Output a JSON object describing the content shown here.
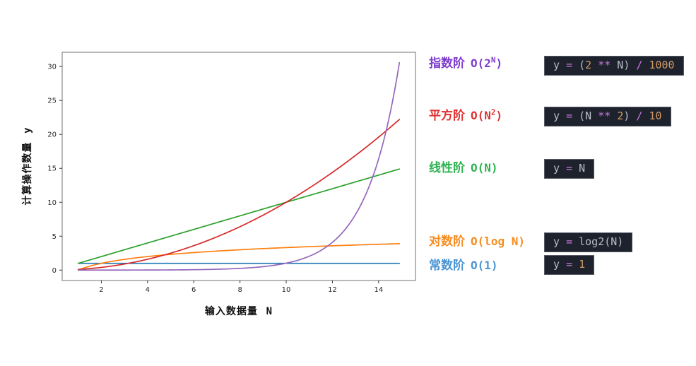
{
  "figure": {
    "background": "#ffffff",
    "xlabel": {
      "text": "输入数据量",
      "symbol": "N"
    },
    "ylabel": {
      "text": "计算操作数量",
      "symbol": "y"
    }
  },
  "chart_data": {
    "type": "line",
    "title": "",
    "xlabel": "输入数据量 N",
    "ylabel": "计算操作数量 y",
    "xlim": [
      0.305,
      15.595
    ],
    "ylim": [
      -1.53,
      32.1
    ],
    "x_ticks": [
      2,
      4,
      6,
      8,
      10,
      12,
      14
    ],
    "y_ticks": [
      0,
      5,
      10,
      15,
      20,
      25,
      30
    ],
    "grid": false,
    "x_sample_start": 1,
    "x_sample_end": 14.9,
    "x_sample_step": 0.1,
    "x": [
      1,
      2,
      3,
      4,
      5,
      6,
      7,
      8,
      9,
      10,
      11,
      12,
      13,
      14,
      14.9
    ],
    "series": [
      {
        "id": "constant",
        "name": "常数阶 O(1)",
        "formula": "y = 1",
        "color": "#1f77b4",
        "y": [
          1,
          1,
          1,
          1,
          1,
          1,
          1,
          1,
          1,
          1,
          1,
          1,
          1,
          1,
          1
        ]
      },
      {
        "id": "logarithmic",
        "name": "对数阶 O(log N)",
        "formula": "y = log2(N)",
        "color": "#ff7f0e",
        "y": [
          0,
          1,
          1.58,
          2,
          2.32,
          2.58,
          2.81,
          3,
          3.17,
          3.32,
          3.46,
          3.58,
          3.7,
          3.81,
          3.9
        ]
      },
      {
        "id": "linear",
        "name": "线性阶 O(N)",
        "formula": "y = N",
        "color": "#2ca02c",
        "y": [
          1,
          2,
          3,
          4,
          5,
          6,
          7,
          8,
          9,
          10,
          11,
          12,
          13,
          14,
          14.9
        ]
      },
      {
        "id": "quadratic",
        "name": "平方阶 O(N²)",
        "formula": "y = (N ** 2) / 10",
        "color": "#d62728",
        "y": [
          0.1,
          0.4,
          0.9,
          1.6,
          2.5,
          3.6,
          4.9,
          6.4,
          8.1,
          10,
          12.1,
          14.4,
          16.9,
          19.6,
          22.2
        ]
      },
      {
        "id": "exponential",
        "name": "指数阶 O(2ᴺ)",
        "formula": "y = (2 ** N) / 1000",
        "color": "#9467bd",
        "y": [
          0.002,
          0.004,
          0.008,
          0.016,
          0.032,
          0.064,
          0.128,
          0.256,
          0.512,
          1.024,
          2.048,
          4.096,
          8.192,
          16.384,
          30.57
        ]
      }
    ]
  },
  "legend": {
    "code_colors": {
      "bg": "#1e222c",
      "border": "#565b66",
      "fg": "#b6bdc8",
      "op": "#c678dd",
      "num": "#d19a66"
    },
    "rows": [
      {
        "id": "exponential",
        "cn": "指数阶",
        "o_pre": "O(2",
        "o_sup": "N",
        "o_post": ")",
        "color": "#7d3bce",
        "code_text": "y = (2 ** N) / 1000",
        "code": [
          [
            "y ",
            "fg"
          ],
          [
            "= ",
            "op"
          ],
          [
            "(",
            "fg"
          ],
          [
            "2",
            "num"
          ],
          [
            " ",
            "fg"
          ],
          [
            "**",
            "op"
          ],
          [
            " N) ",
            "fg"
          ],
          [
            "/",
            "op"
          ],
          [
            " 1000",
            "num"
          ]
        ]
      },
      {
        "id": "quadratic",
        "cn": "平方阶",
        "o_pre": "O(N",
        "o_sup": "2",
        "o_post": ")",
        "color": "#e03131",
        "code_text": "y = (N ** 2) / 10",
        "code": [
          [
            "y ",
            "fg"
          ],
          [
            "= ",
            "op"
          ],
          [
            "(N ",
            "fg"
          ],
          [
            "**",
            "op"
          ],
          [
            " ",
            "fg"
          ],
          [
            "2",
            "num"
          ],
          [
            ") ",
            "fg"
          ],
          [
            "/",
            "op"
          ],
          [
            " 10",
            "num"
          ]
        ]
      },
      {
        "id": "linear",
        "cn": "线性阶",
        "o_pre": "O(N)",
        "o_sup": "",
        "o_post": "",
        "color": "#2db350",
        "code_text": "y = N",
        "code": [
          [
            "y ",
            "fg"
          ],
          [
            "= ",
            "op"
          ],
          [
            "N",
            "fg"
          ]
        ]
      },
      {
        "id": "logarithmic",
        "cn": "对数阶",
        "o_pre": "O(log N)",
        "o_sup": "",
        "o_post": "",
        "color": "#f78c1e",
        "code_text": "y = log2(N)",
        "code": [
          [
            "y ",
            "fg"
          ],
          [
            "= ",
            "op"
          ],
          [
            "log2(N)",
            "fg"
          ]
        ]
      },
      {
        "id": "constant",
        "cn": "常数阶",
        "o_pre": "O(1)",
        "o_sup": "",
        "o_post": "",
        "color": "#4a94d4",
        "code_text": "y = 1",
        "code": [
          [
            "y ",
            "fg"
          ],
          [
            "= ",
            "op"
          ],
          [
            "1",
            "num"
          ]
        ]
      }
    ]
  }
}
